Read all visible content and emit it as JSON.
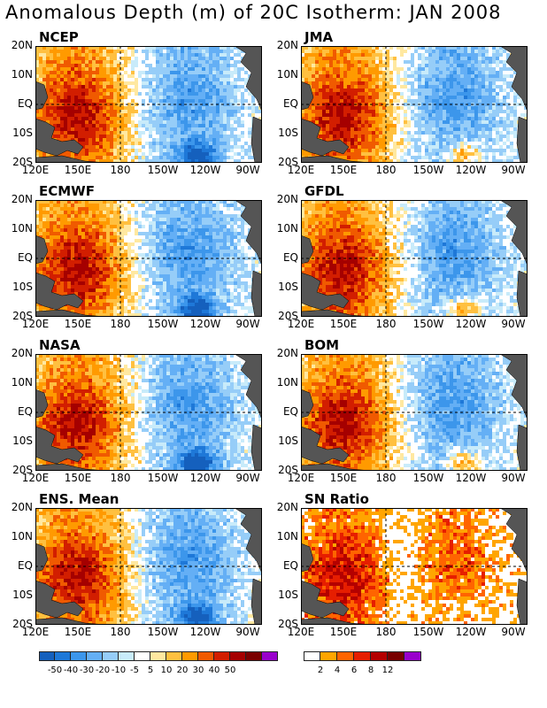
{
  "figure": {
    "title": "Anomalous Depth (m) of 20C Isotherm: JAN 2008"
  },
  "axes": {
    "lat_labels": [
      "20N",
      "10N",
      "EQ",
      "10S",
      "20S"
    ],
    "lon_labels": [
      "120E",
      "150E",
      "180",
      "150W",
      "120W",
      "90W"
    ]
  },
  "panels": [
    {
      "id": "ncep",
      "title": "NCEP"
    },
    {
      "id": "jma",
      "title": "JMA"
    },
    {
      "id": "ecmwf",
      "title": "ECMWF"
    },
    {
      "id": "gfdl",
      "title": "GFDL"
    },
    {
      "id": "nasa",
      "title": "NASA"
    },
    {
      "id": "bom",
      "title": "BOM"
    },
    {
      "id": "ens",
      "title": "ENS. Mean"
    },
    {
      "id": "sn",
      "title": "SN Ratio"
    }
  ],
  "colorbar_anomaly": {
    "colors": [
      "#1560bd",
      "#1e78d8",
      "#3c96eb",
      "#64aff5",
      "#96cdf8",
      "#c8ebfa",
      "#ffffff",
      "#ffe8a0",
      "#ffc040",
      "#ff9a00",
      "#f05a00",
      "#d21e00",
      "#a50000",
      "#7a0000",
      "#9900cc"
    ],
    "labels": [
      "-50",
      "-40",
      "-30",
      "-20",
      "-10",
      "-5",
      "5",
      "10",
      "20",
      "30",
      "40",
      "50"
    ]
  },
  "colorbar_snr": {
    "colors": [
      "#ffffff",
      "#ffa500",
      "#ff6400",
      "#e61e00",
      "#b40000",
      "#780000",
      "#9900cc"
    ],
    "labels": [
      "2",
      "4",
      "6",
      "8",
      "12"
    ]
  },
  "chart_data": [
    {
      "type": "heatmap",
      "title": "NCEP",
      "lon_range": [
        "120E",
        "80W"
      ],
      "lat_range": [
        "20S",
        "20N"
      ]
    },
    {
      "type": "heatmap",
      "title": "JMA",
      "lon_range": [
        "120E",
        "80W"
      ],
      "lat_range": [
        "20S",
        "20N"
      ]
    },
    {
      "type": "heatmap",
      "title": "ECMWF",
      "lon_range": [
        "120E",
        "80W"
      ],
      "lat_range": [
        "20S",
        "20N"
      ]
    },
    {
      "type": "heatmap",
      "title": "GFDL",
      "lon_range": [
        "120E",
        "80W"
      ],
      "lat_range": [
        "20S",
        "20N"
      ]
    },
    {
      "type": "heatmap",
      "title": "NASA",
      "lon_range": [
        "120E",
        "80W"
      ],
      "lat_range": [
        "20S",
        "20N"
      ]
    },
    {
      "type": "heatmap",
      "title": "BOM",
      "lon_range": [
        "120E",
        "80W"
      ],
      "lat_range": [
        "20S",
        "20N"
      ]
    },
    {
      "type": "heatmap",
      "title": "ENS. Mean",
      "lon_range": [
        "120E",
        "80W"
      ],
      "lat_range": [
        "20S",
        "20N"
      ]
    },
    {
      "type": "heatmap",
      "title": "SN Ratio",
      "lon_range": [
        "120E",
        "80W"
      ],
      "lat_range": [
        "20S",
        "20N"
      ]
    }
  ]
}
